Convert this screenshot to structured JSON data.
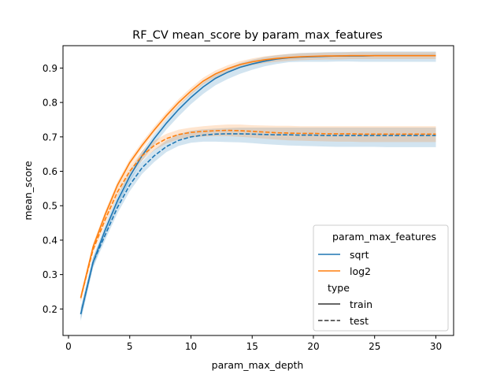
{
  "chart_data": {
    "type": "line",
    "title": "RF_CV mean_score by param_max_features",
    "xlabel": "param_max_depth",
    "ylabel": "mean_score",
    "xlim": [
      -0.45,
      31.45
    ],
    "ylim": [
      0.123,
      0.965
    ],
    "xticks": [
      0,
      5,
      10,
      15,
      20,
      25,
      30
    ],
    "xtick_labels": [
      "0",
      "5",
      "10",
      "15",
      "20",
      "25",
      "30"
    ],
    "yticks": [
      0.2,
      0.3,
      0.4,
      0.5,
      0.6,
      0.7,
      0.8,
      0.9
    ],
    "ytick_labels": [
      "0.2",
      "0.3",
      "0.4",
      "0.5",
      "0.6",
      "0.7",
      "0.8",
      "0.9"
    ],
    "grid": false,
    "legend": {
      "placement": "lower-right",
      "hue_title": "param_max_features",
      "style_title": "type",
      "entries": [
        {
          "label": "sqrt",
          "color": "#1f77b4",
          "dash": "solid"
        },
        {
          "label": "log2",
          "color": "#ff7f0e",
          "dash": "solid"
        },
        {
          "label": "train",
          "color": "#333333",
          "dash": "solid"
        },
        {
          "label": "test",
          "color": "#333333",
          "dash": "dashed"
        }
      ]
    },
    "x": [
      1,
      2,
      3,
      4,
      5,
      6,
      7,
      8,
      9,
      10,
      11,
      12,
      13,
      14,
      15,
      16,
      17,
      18,
      19,
      20,
      21,
      22,
      23,
      24,
      25,
      26,
      27,
      28,
      29,
      30
    ],
    "series": [
      {
        "name": "sqrt",
        "type": "train",
        "color": "#1f77b4",
        "dash": "solid",
        "values": [
          0.185,
          0.335,
          0.43,
          0.515,
          0.585,
          0.645,
          0.695,
          0.74,
          0.78,
          0.815,
          0.845,
          0.87,
          0.888,
          0.902,
          0.912,
          0.92,
          0.926,
          0.93,
          0.932,
          0.933,
          0.934,
          0.935,
          0.935,
          0.935,
          0.936,
          0.936,
          0.936,
          0.936,
          0.936,
          0.936
        ],
        "ci_low": [
          0.165,
          0.32,
          0.415,
          0.5,
          0.57,
          0.63,
          0.678,
          0.722,
          0.76,
          0.795,
          0.825,
          0.85,
          0.868,
          0.883,
          0.895,
          0.905,
          0.912,
          0.917,
          0.918,
          0.918,
          0.918,
          0.919,
          0.919,
          0.918,
          0.918,
          0.918,
          0.918,
          0.918,
          0.918,
          0.918
        ],
        "ci_high": [
          0.205,
          0.35,
          0.445,
          0.53,
          0.6,
          0.658,
          0.708,
          0.752,
          0.792,
          0.828,
          0.858,
          0.882,
          0.9,
          0.914,
          0.924,
          0.932,
          0.937,
          0.941,
          0.944,
          0.945,
          0.946,
          0.947,
          0.947,
          0.948,
          0.948,
          0.948,
          0.948,
          0.948,
          0.948,
          0.948
        ]
      },
      {
        "name": "log2",
        "type": "train",
        "color": "#ff7f0e",
        "dash": "solid",
        "values": [
          0.232,
          0.38,
          0.475,
          0.56,
          0.625,
          0.675,
          0.72,
          0.762,
          0.8,
          0.833,
          0.862,
          0.883,
          0.898,
          0.91,
          0.918,
          0.924,
          0.928,
          0.931,
          0.933,
          0.934,
          0.935,
          0.935,
          0.936,
          0.936,
          0.936,
          0.936,
          0.936,
          0.936,
          0.936,
          0.936
        ],
        "ci_low": [
          0.222,
          0.37,
          0.465,
          0.55,
          0.615,
          0.665,
          0.71,
          0.752,
          0.79,
          0.823,
          0.852,
          0.873,
          0.888,
          0.9,
          0.908,
          0.914,
          0.918,
          0.921,
          0.923,
          0.924,
          0.925,
          0.925,
          0.926,
          0.926,
          0.926,
          0.926,
          0.926,
          0.926,
          0.926,
          0.926
        ],
        "ci_high": [
          0.242,
          0.39,
          0.485,
          0.57,
          0.635,
          0.685,
          0.73,
          0.772,
          0.81,
          0.843,
          0.872,
          0.893,
          0.908,
          0.92,
          0.928,
          0.934,
          0.938,
          0.941,
          0.943,
          0.944,
          0.945,
          0.945,
          0.946,
          0.946,
          0.946,
          0.946,
          0.946,
          0.946,
          0.946,
          0.946
        ]
      },
      {
        "name": "sqrt",
        "type": "test",
        "color": "#1f77b4",
        "dash": "dashed",
        "values": [
          0.185,
          0.335,
          0.415,
          0.495,
          0.56,
          0.61,
          0.645,
          0.672,
          0.69,
          0.7,
          0.705,
          0.708,
          0.709,
          0.709,
          0.708,
          0.707,
          0.706,
          0.706,
          0.705,
          0.705,
          0.704,
          0.704,
          0.704,
          0.704,
          0.704,
          0.704,
          0.704,
          0.704,
          0.704,
          0.704
        ],
        "ci_low": [
          0.17,
          0.32,
          0.4,
          0.478,
          0.542,
          0.592,
          0.627,
          0.656,
          0.674,
          0.683,
          0.686,
          0.686,
          0.685,
          0.684,
          0.682,
          0.679,
          0.677,
          0.675,
          0.674,
          0.673,
          0.672,
          0.671,
          0.671,
          0.671,
          0.671,
          0.67,
          0.67,
          0.67,
          0.67,
          0.67
        ],
        "ci_high": [
          0.2,
          0.35,
          0.43,
          0.512,
          0.578,
          0.628,
          0.663,
          0.69,
          0.708,
          0.718,
          0.722,
          0.724,
          0.726,
          0.727,
          0.727,
          0.727,
          0.727,
          0.727,
          0.727,
          0.727,
          0.727,
          0.727,
          0.727,
          0.727,
          0.727,
          0.727,
          0.727,
          0.727,
          0.727,
          0.727
        ]
      },
      {
        "name": "log2",
        "type": "test",
        "color": "#ff7f0e",
        "dash": "dashed",
        "values": [
          0.232,
          0.372,
          0.46,
          0.54,
          0.6,
          0.645,
          0.675,
          0.695,
          0.707,
          0.713,
          0.716,
          0.718,
          0.719,
          0.718,
          0.716,
          0.714,
          0.712,
          0.711,
          0.71,
          0.71,
          0.709,
          0.709,
          0.709,
          0.708,
          0.708,
          0.708,
          0.708,
          0.708,
          0.708,
          0.708
        ],
        "ci_low": [
          0.22,
          0.36,
          0.447,
          0.527,
          0.586,
          0.631,
          0.661,
          0.681,
          0.693,
          0.699,
          0.701,
          0.702,
          0.702,
          0.7,
          0.698,
          0.695,
          0.692,
          0.69,
          0.689,
          0.688,
          0.687,
          0.686,
          0.686,
          0.685,
          0.685,
          0.685,
          0.685,
          0.685,
          0.685,
          0.685
        ],
        "ci_high": [
          0.244,
          0.384,
          0.473,
          0.553,
          0.614,
          0.659,
          0.689,
          0.709,
          0.721,
          0.727,
          0.731,
          0.734,
          0.736,
          0.736,
          0.734,
          0.733,
          0.732,
          0.732,
          0.731,
          0.731,
          0.731,
          0.731,
          0.731,
          0.731,
          0.731,
          0.731,
          0.731,
          0.731,
          0.731,
          0.731
        ]
      }
    ]
  }
}
